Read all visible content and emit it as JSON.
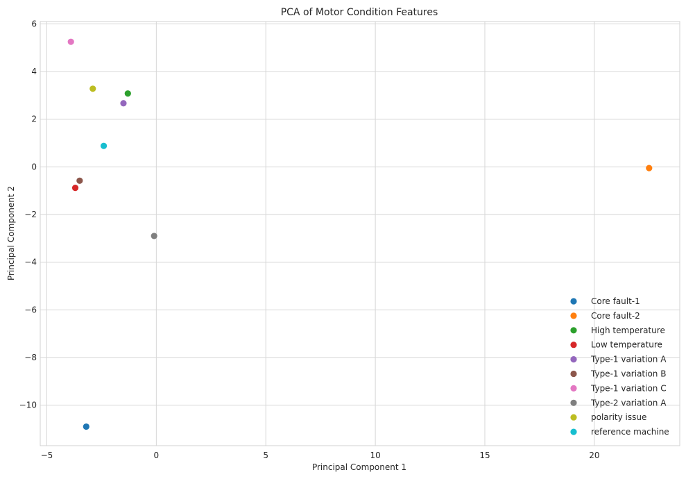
{
  "chart_data": {
    "type": "scatter",
    "title": "PCA of Motor Condition Features",
    "xlabel": "Principal Component 1",
    "ylabel": "Principal Component 2",
    "xlim": [
      -5.3,
      23.9
    ],
    "ylim": [
      -11.7,
      6.1
    ],
    "xticks": [
      -5,
      0,
      5,
      10,
      15,
      20
    ],
    "xtick_labels": [
      "−5",
      "0",
      "5",
      "10",
      "15",
      "20"
    ],
    "yticks": [
      6,
      4,
      2,
      0,
      -2,
      -4,
      -6,
      -8,
      -10
    ],
    "ytick_labels": [
      "6",
      "4",
      "2",
      "0",
      "−2",
      "−4",
      "−6",
      "−8",
      "−10"
    ],
    "grid": true,
    "legend_position": "lower-right",
    "series": [
      {
        "name": "Core fault-1",
        "color": "#1f77b4",
        "x": [
          -3.2
        ],
        "y": [
          -10.9
        ]
      },
      {
        "name": "Core fault-2",
        "color": "#ff7f0e",
        "x": [
          22.5
        ],
        "y": [
          -0.05
        ]
      },
      {
        "name": "High temperature",
        "color": "#2ca02c",
        "x": [
          -1.3
        ],
        "y": [
          3.08
        ]
      },
      {
        "name": "Low temperature",
        "color": "#d62728",
        "x": [
          -3.7
        ],
        "y": [
          -0.88
        ]
      },
      {
        "name": "Type-1 variation A",
        "color": "#9467bd",
        "x": [
          -1.5
        ],
        "y": [
          2.67
        ]
      },
      {
        "name": "Type-1 variation B",
        "color": "#8c564b",
        "x": [
          -3.5
        ],
        "y": [
          -0.58
        ]
      },
      {
        "name": "Type-1 variation C",
        "color": "#e377c2",
        "x": [
          -3.9
        ],
        "y": [
          5.25
        ]
      },
      {
        "name": "Type-2 variation A",
        "color": "#7f7f7f",
        "x": [
          -0.1
        ],
        "y": [
          -2.9
        ]
      },
      {
        "name": "polarity issue",
        "color": "#bcbd22",
        "x": [
          -2.9
        ],
        "y": [
          3.28
        ]
      },
      {
        "name": "reference machine",
        "color": "#17becf",
        "x": [
          -2.4
        ],
        "y": [
          0.88
        ]
      }
    ]
  }
}
